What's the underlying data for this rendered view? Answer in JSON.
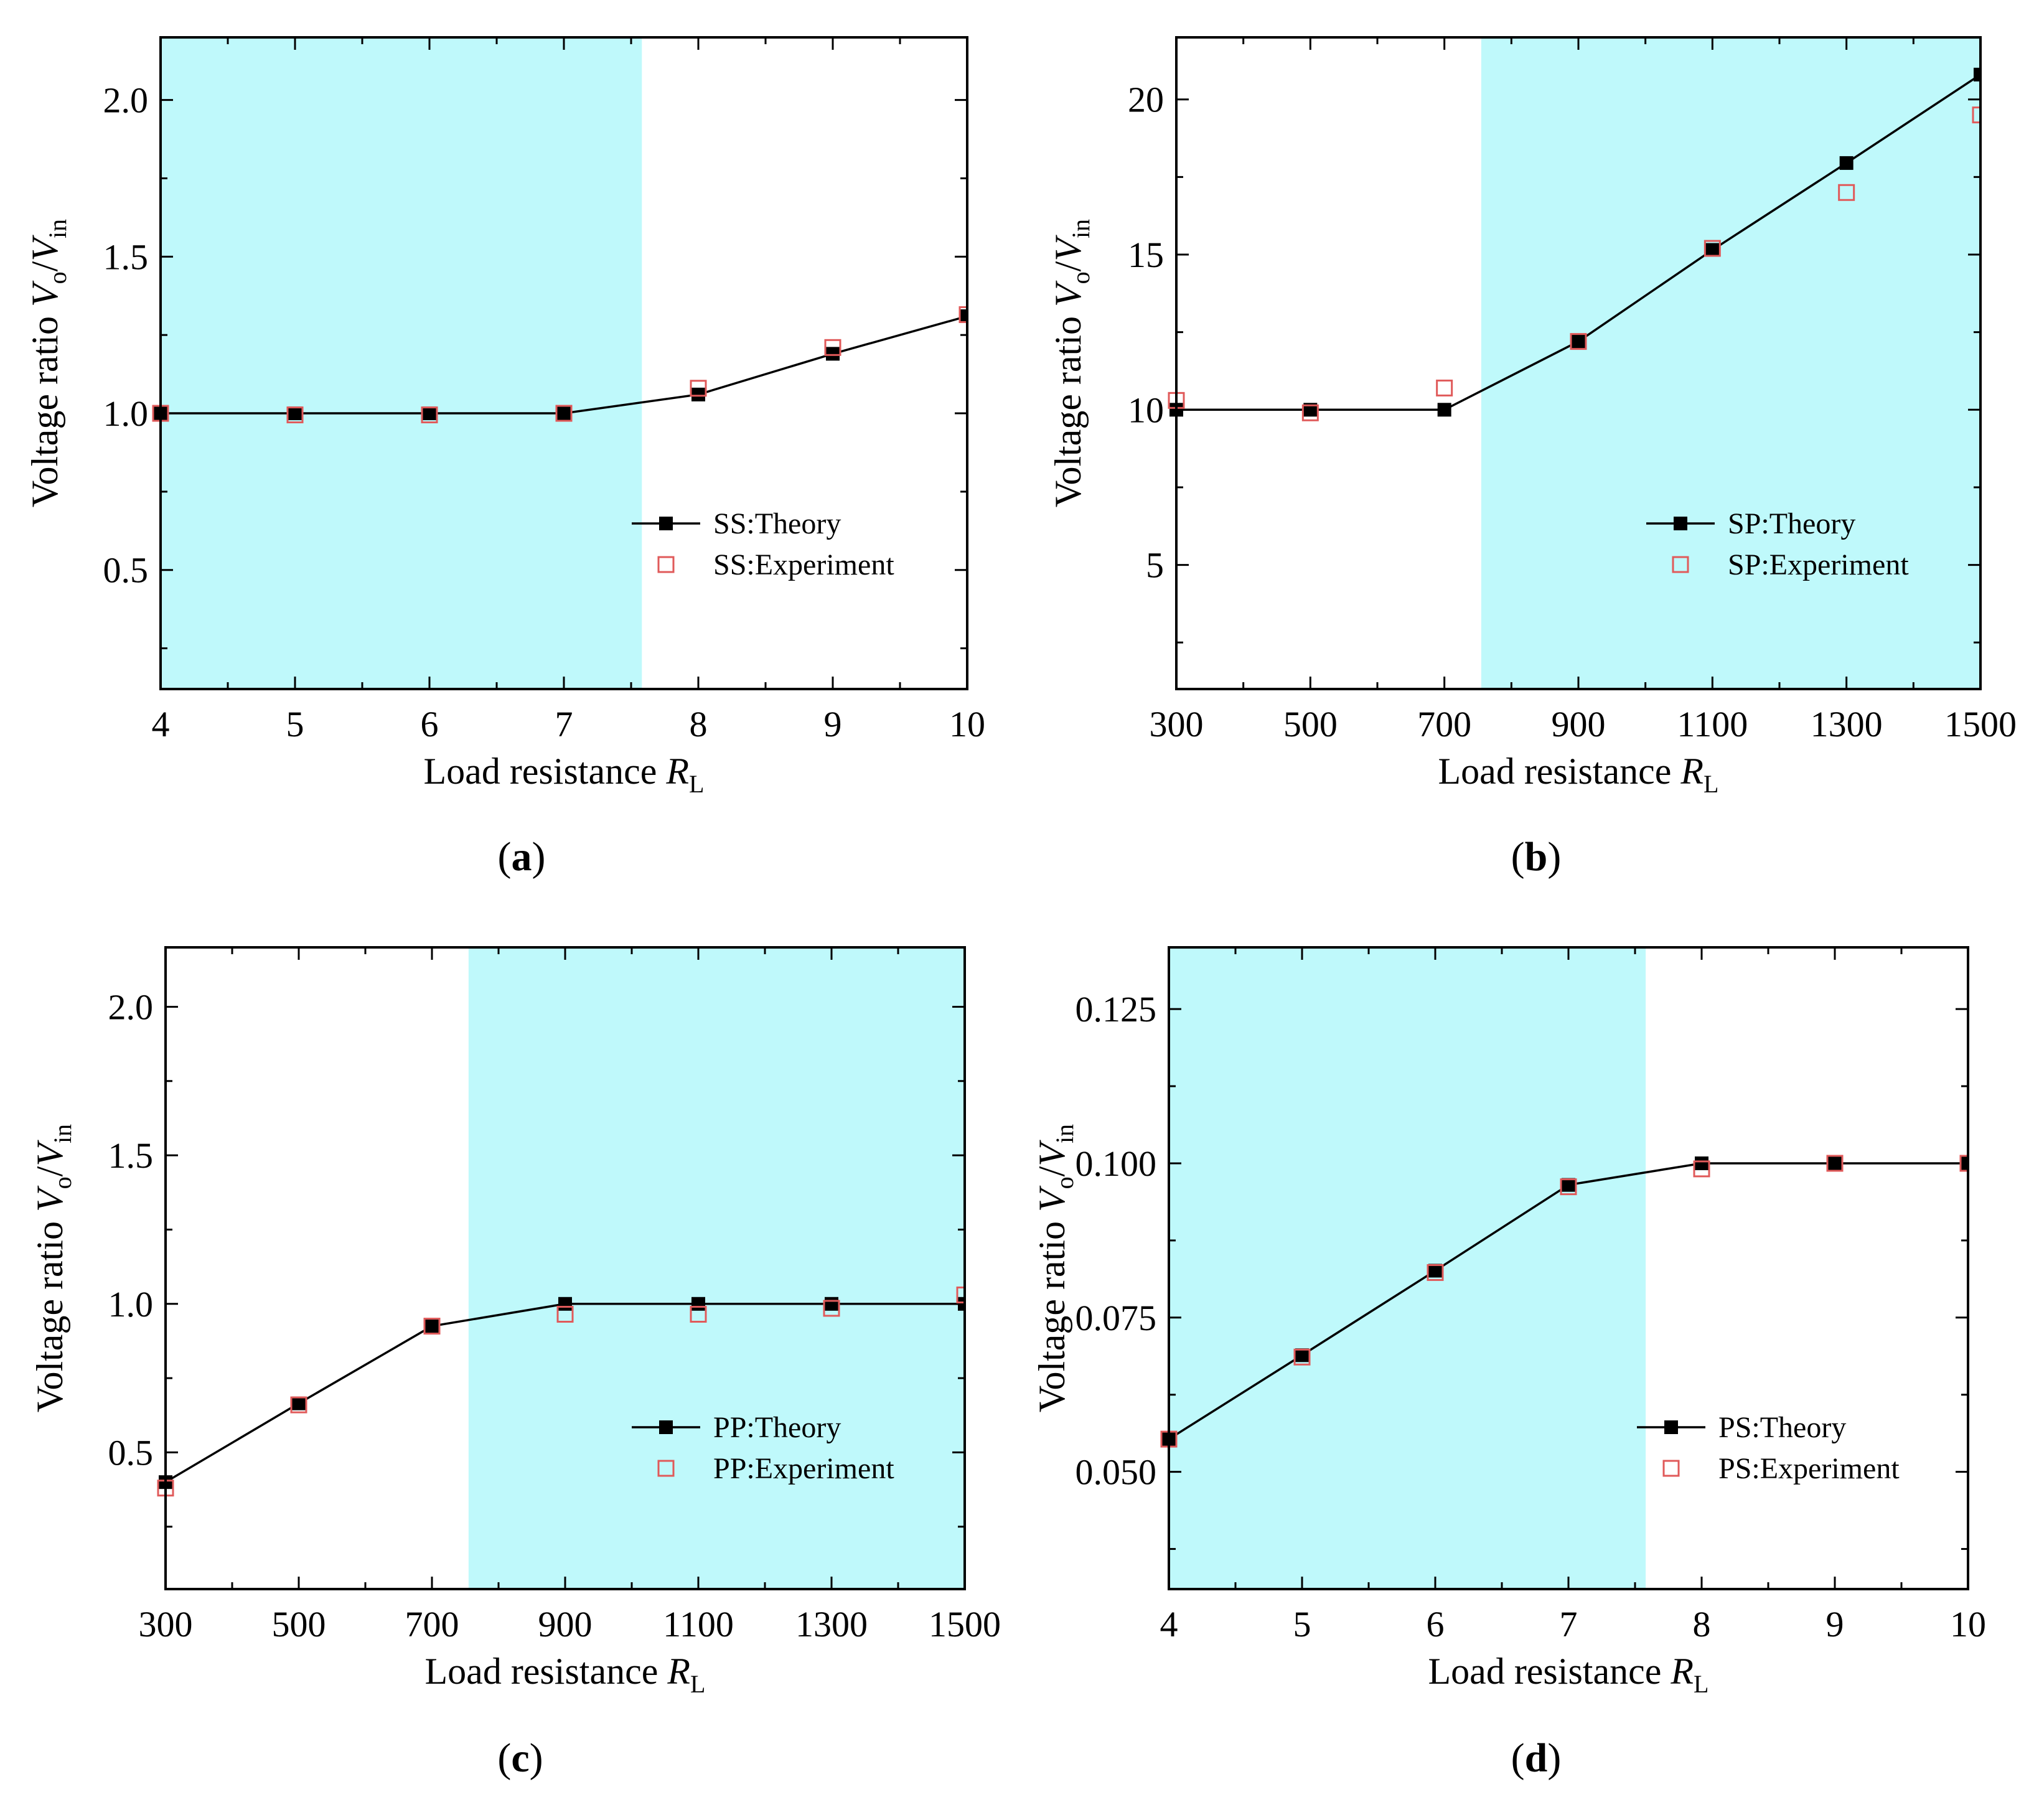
{
  "figure": {
    "colors": {
      "shade": "#bff9fb",
      "theory": "#000000",
      "experiment": "#e05a5a",
      "frame": "#000000"
    }
  },
  "chart_data": [
    {
      "panel": "a",
      "panel_label": "a",
      "type": "line",
      "xlabel": {
        "main": "Load resistance ",
        "var": "R",
        "sub": "L"
      },
      "ylabel": {
        "main": "Voltage ratio ",
        "v1": "V",
        "s1": "o",
        "slash": "/",
        "v2": "V",
        "s2": "in"
      },
      "xlim": [
        4,
        10
      ],
      "ylim": [
        0.12,
        2.2
      ],
      "xticks": [
        4,
        5,
        6,
        7,
        8,
        9,
        10
      ],
      "xtick_labels": [
        "4",
        "5",
        "6",
        "7",
        "8",
        "9",
        "10"
      ],
      "yticks": [
        0.5,
        1.0,
        1.5,
        2.0
      ],
      "ytick_labels": [
        "0.5",
        "1.0",
        "1.5",
        "2.0"
      ],
      "shaded_x": [
        4,
        7.58
      ],
      "legend_position": "middle-right",
      "series": [
        {
          "name": "SS:Theory",
          "style": "line-square-filled",
          "x": [
            4,
            5,
            6,
            7,
            8,
            9,
            10
          ],
          "y": [
            1.0,
            1.0,
            1.0,
            1.0,
            1.06,
            1.19,
            1.31
          ]
        },
        {
          "name": "SS:Experiment",
          "style": "square-open",
          "x": [
            4,
            5,
            6,
            7,
            8,
            9,
            10
          ],
          "y": [
            1.0,
            0.995,
            0.995,
            1.0,
            1.08,
            1.21,
            1.315
          ]
        }
      ]
    },
    {
      "panel": "b",
      "panel_label": "b",
      "type": "line",
      "xlabel": {
        "main": "Load resistance ",
        "var": "R",
        "sub": "L"
      },
      "ylabel": {
        "main": "Voltage ratio ",
        "v1": "V",
        "s1": "o",
        "slash": "/",
        "v2": "V",
        "s2": "in"
      },
      "xlim": [
        300,
        1500
      ],
      "ylim": [
        1,
        22
      ],
      "xticks": [
        300,
        500,
        700,
        900,
        1100,
        1300,
        1500
      ],
      "xtick_labels": [
        "300",
        "500",
        "700",
        "900",
        "1100",
        "1300",
        "1500"
      ],
      "yticks": [
        5,
        10,
        15,
        20
      ],
      "ytick_labels": [
        "5",
        "10",
        "15",
        "20"
      ],
      "shaded_x": [
        755,
        1500
      ],
      "legend_position": "middle-right",
      "series": [
        {
          "name": "SP:Theory",
          "style": "line-square-filled",
          "x": [
            300,
            500,
            700,
            900,
            1100,
            1300,
            1500
          ],
          "y": [
            10.0,
            10.0,
            10.0,
            12.2,
            15.15,
            17.95,
            20.8
          ]
        },
        {
          "name": "SP:Experiment",
          "style": "square-open",
          "x": [
            300,
            500,
            700,
            900,
            1100,
            1300,
            1500
          ],
          "y": [
            10.3,
            9.9,
            10.7,
            12.2,
            15.2,
            17.0,
            19.5
          ]
        }
      ]
    },
    {
      "panel": "c",
      "panel_label": "c",
      "type": "line",
      "xlabel": {
        "main": "Load resistance ",
        "var": "R",
        "sub": "L"
      },
      "ylabel": {
        "main": "Voltage ratio ",
        "v1": "V",
        "s1": "o",
        "slash": "/",
        "v2": "V",
        "s2": "in"
      },
      "xlim": [
        300,
        1500
      ],
      "ylim": [
        0.04,
        2.2
      ],
      "xticks": [
        300,
        500,
        700,
        900,
        1100,
        1300,
        1500
      ],
      "xtick_labels": [
        "300",
        "500",
        "700",
        "900",
        "1100",
        "1300",
        "1500"
      ],
      "yticks": [
        0.5,
        1.0,
        1.5,
        2.0
      ],
      "ytick_labels": [
        "0.5",
        "1.0",
        "1.5",
        "2.0"
      ],
      "shaded_x": [
        755,
        1500
      ],
      "legend_position": "middle-right",
      "series": [
        {
          "name": "PP:Theory",
          "style": "line-square-filled",
          "x": [
            300,
            500,
            700,
            900,
            1100,
            1300,
            1500
          ],
          "y": [
            0.4,
            0.665,
            0.925,
            1.0,
            1.0,
            1.0,
            1.0
          ]
        },
        {
          "name": "PP:Experiment",
          "style": "square-open",
          "x": [
            300,
            500,
            700,
            900,
            1100,
            1300,
            1500
          ],
          "y": [
            0.38,
            0.66,
            0.925,
            0.965,
            0.965,
            0.985,
            1.03
          ]
        }
      ]
    },
    {
      "panel": "d",
      "panel_label": "d",
      "type": "line",
      "xlabel": {
        "main": "Load resistance ",
        "var": "R",
        "sub": "L"
      },
      "ylabel": {
        "main": "Voltage ratio ",
        "v1": "V",
        "s1": "o",
        "slash": "/",
        "v2": "V",
        "s2": "in"
      },
      "xlim": [
        4,
        10
      ],
      "ylim": [
        0.031,
        0.135
      ],
      "xticks": [
        4,
        5,
        6,
        7,
        8,
        9,
        10
      ],
      "xtick_labels": [
        "4",
        "5",
        "6",
        "7",
        "8",
        "9",
        "10"
      ],
      "yticks": [
        0.05,
        0.075,
        0.1,
        0.125
      ],
      "ytick_labels": [
        "0.050",
        "0.075",
        "0.100",
        "0.125"
      ],
      "shaded_x": [
        4,
        7.58
      ],
      "legend_position": "middle-right",
      "series": [
        {
          "name": "PS:Theory",
          "style": "line-square-filled",
          "x": [
            4,
            5,
            6,
            7,
            8,
            9,
            10
          ],
          "y": [
            0.0553,
            0.0689,
            0.0826,
            0.0965,
            0.1,
            0.1,
            0.1
          ]
        },
        {
          "name": "PS:Experiment",
          "style": "square-open",
          "x": [
            4,
            5,
            6,
            7,
            8,
            9,
            10
          ],
          "y": [
            0.0553,
            0.0686,
            0.0823,
            0.0962,
            0.0991,
            0.1,
            0.1
          ]
        }
      ]
    }
  ]
}
